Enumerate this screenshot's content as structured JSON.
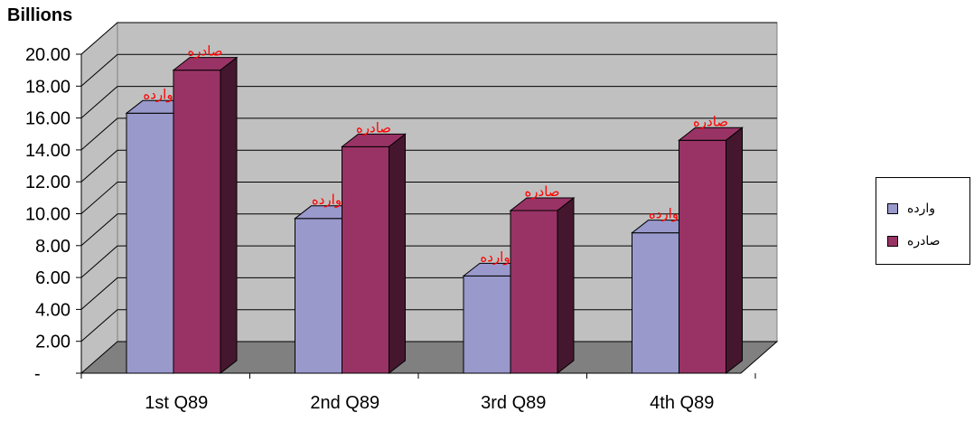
{
  "chart_data": {
    "type": "bar",
    "title": "",
    "unit_label": "Billions",
    "xlabel": "",
    "ylabel": "",
    "categories": [
      "1st Q89",
      "2nd Q89",
      "3rd Q89",
      "4th Q89"
    ],
    "series": [
      {
        "name": "وارده",
        "values": [
          16.3,
          9.7,
          6.1,
          8.8
        ],
        "color": "#9999cc"
      },
      {
        "name": "صادره",
        "values": [
          19.0,
          14.2,
          10.2,
          14.6
        ],
        "color": "#993366"
      }
    ],
    "data_labels": [
      "وارده",
      "صادره"
    ],
    "data_label_color": "#ff0000",
    "ylim": [
      0,
      20
    ],
    "yticks": [
      "-",
      "2.00",
      "4.00",
      "6.00",
      "8.00",
      "10.00",
      "12.00",
      "14.00",
      "16.00",
      "18.00",
      "20.00"
    ],
    "grid": true,
    "legend_position": "right",
    "plot_background": "#c0c0c0",
    "floor_color": "#808080"
  }
}
